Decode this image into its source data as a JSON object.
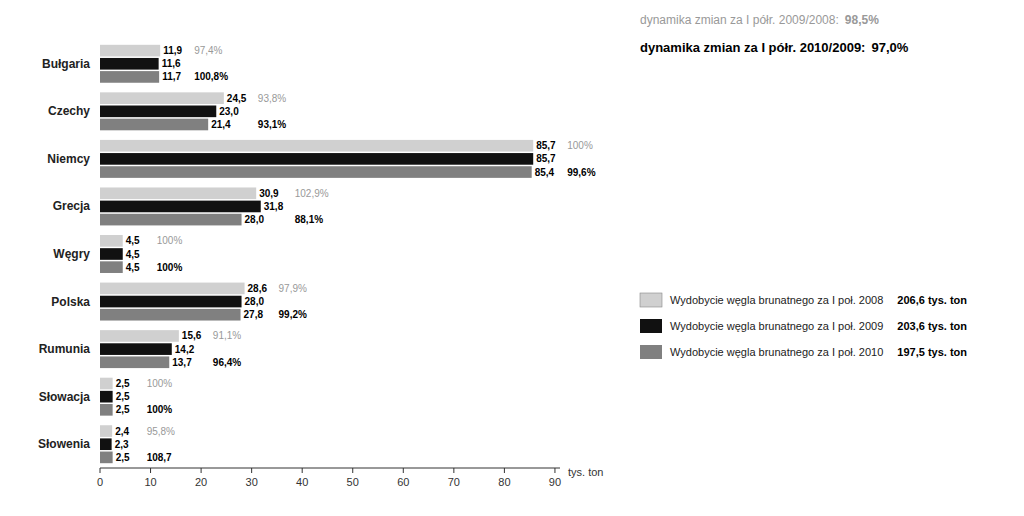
{
  "chart_data": {
    "type": "bar",
    "orientation": "horizontal",
    "categories": [
      "Bułgaria",
      "Czechy",
      "Niemcy",
      "Grecja",
      "Węgry",
      "Polska",
      "Rumunia",
      "Słowacja",
      "Słowenia"
    ],
    "series": [
      {
        "name": "Wydobycie węgla brunatnego za I poł. 2008",
        "color": "#d0d0d0",
        "values": [
          11.9,
          24.5,
          85.7,
          30.9,
          4.5,
          28.6,
          15.6,
          2.5,
          2.4
        ],
        "value_labels": [
          "11,9",
          "24,5",
          "85,7",
          "30,9",
          "4,5",
          "28,6",
          "15,6",
          "2,5",
          "2,4"
        ],
        "total_label": "206,6 tys. ton"
      },
      {
        "name": "Wydobycie węgla brunatnego za I poł. 2009",
        "color": "#111111",
        "values": [
          11.6,
          23.0,
          85.7,
          31.8,
          4.5,
          28.0,
          14.2,
          2.5,
          2.3
        ],
        "value_labels": [
          "11,6",
          "23,0",
          "85,7",
          "31,8",
          "4,5",
          "28,0",
          "14,2",
          "2,5",
          "2,3"
        ],
        "total_label": "203,6 tys. ton"
      },
      {
        "name": "Wydobycie węgla brunatnego za I poł. 2010",
        "color": "#808080",
        "values": [
          11.7,
          21.4,
          85.4,
          28.0,
          4.5,
          27.8,
          13.7,
          2.5,
          2.5
        ],
        "value_labels": [
          "11,7",
          "21,4",
          "85,4",
          "28,0",
          "4,5",
          "27,8",
          "13,7",
          "2,5",
          "2,5"
        ],
        "total_label": "197,5 tys. ton"
      }
    ],
    "dynamics": [
      {
        "label": "dynamika zmian za I półr. 2009/2008:",
        "total_label": "98,5%",
        "category_labels": [
          "97,4%",
          "93,8%",
          "100%",
          "102,9%",
          "100%",
          "97,9%",
          "91,1%",
          "100%",
          "95,8%"
        ]
      },
      {
        "label": "dynamika zmian za I półr. 2010/2009:",
        "total_label": "97,0%",
        "category_labels": [
          "100,8%",
          "93,1%",
          "99,6%",
          "88,1%",
          "100%",
          "99,2%",
          "96,4%",
          "100%",
          "108,7"
        ]
      }
    ],
    "xlabel": "tys. ton",
    "xlim": [
      0,
      91
    ],
    "xticks": [
      0,
      10,
      20,
      30,
      40,
      50,
      60,
      70,
      80,
      90
    ],
    "grid": false,
    "legend": "right",
    "data_labels": true
  }
}
